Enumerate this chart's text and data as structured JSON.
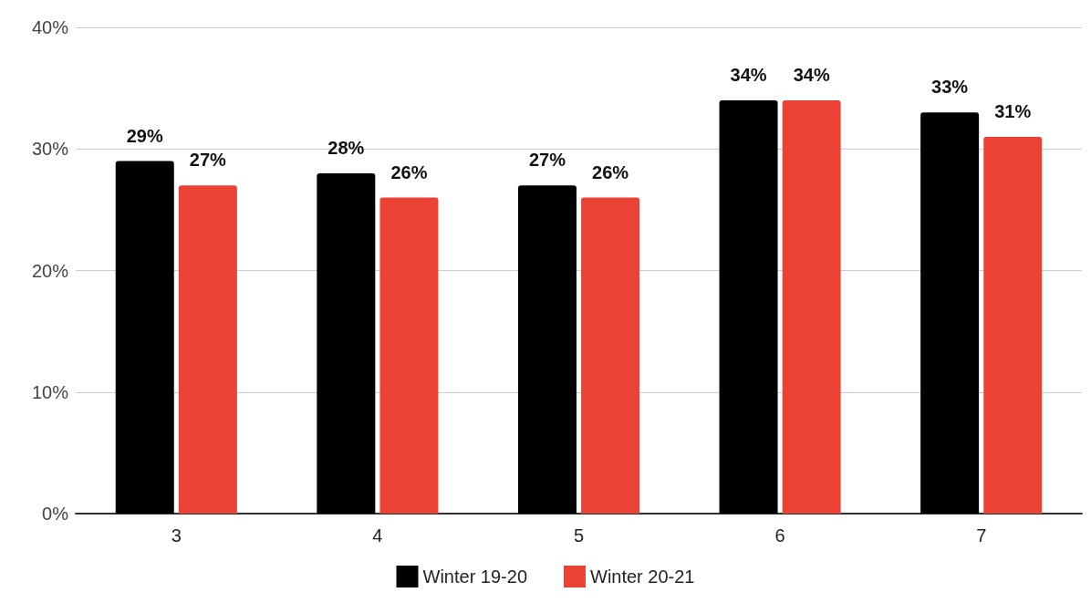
{
  "chart_data": {
    "type": "bar",
    "categories": [
      "3",
      "4",
      "5",
      "6",
      "7"
    ],
    "series": [
      {
        "name": "Winter 19-20",
        "color": "#000000",
        "values": [
          29,
          28,
          27,
          34,
          33
        ],
        "value_labels": [
          "29%",
          "28%",
          "27%",
          "34%",
          "33%"
        ]
      },
      {
        "name": "Winter 20-21",
        "color": "#ea4335",
        "values": [
          27,
          26,
          26,
          34,
          31
        ],
        "value_labels": [
          "27%",
          "26%",
          "26%",
          "34%",
          "31%"
        ]
      }
    ],
    "ylim": [
      0,
      40
    ],
    "yticks": [
      {
        "value": 0,
        "label": "0%"
      },
      {
        "value": 10,
        "label": "10%"
      },
      {
        "value": 20,
        "label": "20%"
      },
      {
        "value": 30,
        "label": "30%"
      },
      {
        "value": 40,
        "label": "40%"
      }
    ],
    "grid": "y",
    "legend": "bottom"
  }
}
